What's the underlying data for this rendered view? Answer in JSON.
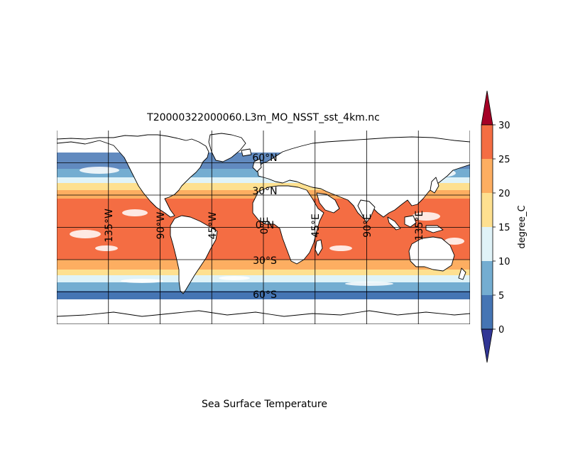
{
  "map": {
    "title": "T20000322000060.L3m_MO_NSST_sst_4km.nc",
    "caption": "Sea Surface Temperature",
    "projection": "equirectangular",
    "extent": {
      "lon": [
        -180,
        180
      ],
      "lat": [
        -90,
        90
      ]
    },
    "lon_labels": [
      "135°W",
      "90°W",
      "45°W",
      "0°E",
      "45°E",
      "90°E",
      "135°E"
    ],
    "lat_labels": [
      "60°N",
      "30°N",
      "0°N",
      "30°S",
      "60°S"
    ],
    "land_color": "#ffffff",
    "coastline_color": "#000000",
    "gridline_color": "#000000"
  },
  "colorbar": {
    "label": "degree_C",
    "ticks": [
      "0",
      "5",
      "10",
      "15",
      "20",
      "25",
      "30"
    ],
    "extend": "both",
    "colors": [
      "#313695",
      "#4575b4",
      "#74add1",
      "#e0f3f8",
      "#fee090",
      "#fdae61",
      "#f46d43",
      "#a50026"
    ]
  }
}
